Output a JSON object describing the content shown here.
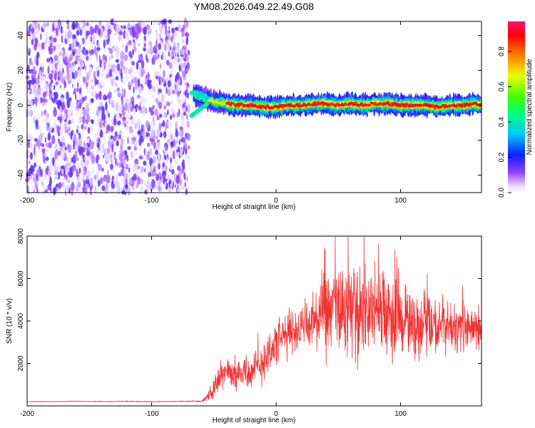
{
  "page": {
    "title": "YM08.2026.049.22.49.G08"
  },
  "chart_data": [
    {
      "type": "heatmap",
      "title": "YM08.2026.049.22.49.G08",
      "xlabel": "Height of straight line (km)",
      "ylabel": "Frequency (Hz)",
      "xlim": [
        -200,
        165
      ],
      "ylim": [
        -50,
        48
      ],
      "xticks": [
        -200,
        -100,
        0,
        100
      ],
      "yticks": [
        -40,
        -20,
        0,
        20,
        40
      ],
      "colorbar": {
        "label": "Normalized spectral amplitude",
        "range": [
          0,
          0.97
        ],
        "ticks": [
          0.0,
          0.2,
          0.4,
          0.6,
          0.8
        ],
        "tick_labels": [
          "0.0",
          "0.2",
          "0.4",
          "0.6",
          "0.8"
        ]
      },
      "regions": [
        {
          "x_range": [
            -200,
            -70
          ],
          "description_level": "noise",
          "amplitude": [
            0.0,
            0.15
          ]
        },
        {
          "x_range": [
            -65,
            165
          ],
          "ridge_frequency_hz": 0,
          "amplitude_peak": 0.95
        }
      ],
      "ridge": {
        "x": [
          -65,
          -60,
          -50,
          -40,
          -30,
          -20,
          -10,
          0,
          10,
          20,
          30,
          40,
          50,
          60,
          70,
          80,
          90,
          100,
          110,
          120,
          130,
          140,
          150,
          160,
          165
        ],
        "y": [
          6,
          5,
          2,
          1,
          0,
          0,
          -1,
          -1,
          0,
          0,
          1,
          1,
          0,
          1,
          0,
          1,
          1,
          0,
          0,
          0,
          -1,
          0,
          0,
          1,
          0
        ],
        "y_upper_branch_start": [
          -68,
          7
        ],
        "y_lower_branch_start": [
          -68,
          -6
        ]
      },
      "grid": false
    },
    {
      "type": "line",
      "xlabel": "Height of straight line (km)",
      "ylabel": "SNR (10 * v/v)",
      "xlim": [
        -200,
        165
      ],
      "ylim": [
        0,
        8000
      ],
      "xticks": [
        -200,
        -100,
        0,
        100
      ],
      "yticks": [
        2000,
        4000,
        6000,
        8000
      ],
      "color": "#f03232",
      "series": [
        {
          "x": [
            -200,
            -180,
            -160,
            -140,
            -120,
            -100,
            -80,
            -60,
            -55,
            -50,
            -45,
            -40,
            -35,
            -30,
            -25,
            -20,
            -15,
            -10,
            -5,
            0,
            5,
            10,
            15,
            20,
            25,
            30,
            35,
            40,
            45,
            50,
            55,
            60,
            65,
            70,
            75,
            80,
            85,
            90,
            95,
            100,
            105,
            110,
            115,
            120,
            125,
            130,
            135,
            140,
            145,
            150,
            155,
            160,
            165
          ],
          "values": [
            200,
            200,
            220,
            200,
            210,
            200,
            210,
            220,
            400,
            900,
            1400,
            1600,
            1500,
            1500,
            1700,
            1500,
            1800,
            2100,
            2600,
            2900,
            3200,
            3400,
            3600,
            3600,
            3800,
            4000,
            4100,
            4200,
            4500,
            4700,
            4300,
            4600,
            4400,
            4600,
            4500,
            4700,
            4300,
            4000,
            3900,
            4200,
            4000,
            3800,
            3700,
            4000,
            3800,
            3600,
            3900,
            3700,
            3600,
            3800,
            3500,
            3700,
            3600
          ],
          "spread": [
            20,
            20,
            20,
            20,
            20,
            20,
            20,
            30,
            200,
            700,
            900,
            900,
            800,
            1100,
            1300,
            900,
            1200,
            1300,
            1400,
            1300,
            1300,
            1400,
            1400,
            1200,
            1600,
            1900,
            2200,
            2600,
            2800,
            3200,
            2700,
            2500,
            2800,
            3000,
            2600,
            2400,
            2800,
            2600,
            2600,
            2200,
            2000,
            2000,
            1900,
            1800,
            1900,
            1700,
            1600,
            1500,
            1500,
            1400,
            1400,
            1300,
            1300
          ]
        }
      ],
      "grid": false
    }
  ]
}
